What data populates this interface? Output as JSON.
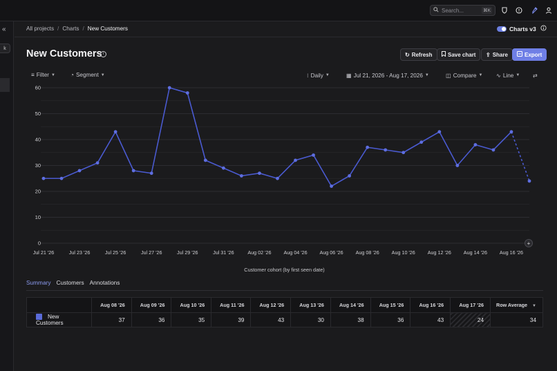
{
  "topbar": {
    "search_placeholder": "Search...",
    "search_shortcut": "⌘K",
    "icons": [
      "shield-icon",
      "help-icon",
      "rocket-icon",
      "user-icon"
    ]
  },
  "sidebar": {
    "collapse_icon": "double-chevron-left-icon",
    "pill_label": "k"
  },
  "breadcrumb": [
    "All projects",
    "Charts",
    "New Customers"
  ],
  "charts_toggle": {
    "label": "Charts v3",
    "on": true
  },
  "page": {
    "title": "New Customers"
  },
  "actions": {
    "refresh": "Refresh",
    "save": "Save chart",
    "share": "Share",
    "export": "Export"
  },
  "controls": {
    "filter": "Filter",
    "segment": "Segment",
    "interval": "Daily",
    "date_range": "Jul 21, 2026 - Aug 17, 2026",
    "compare": "Compare",
    "chart_type": "Line"
  },
  "colors": {
    "accent": "#6f7fe6",
    "series": "#4a5ad0",
    "background": "#1b1b1d"
  },
  "chart_data": {
    "type": "line",
    "x": [
      "Jul 21 '26",
      "Jul 22 '26",
      "Jul 23 '26",
      "Jul 24 '26",
      "Jul 25 '26",
      "Jul 26 '26",
      "Jul 27 '26",
      "Jul 28 '26",
      "Jul 29 '26",
      "Jul 30 '26",
      "Jul 31 '26",
      "Aug 01 '26",
      "Aug 02 '26",
      "Aug 03 '26",
      "Aug 04 '26",
      "Aug 05 '26",
      "Aug 06 '26",
      "Aug 07 '26",
      "Aug 08 '26",
      "Aug 09 '26",
      "Aug 10 '26",
      "Aug 11 '26",
      "Aug 12 '26",
      "Aug 13 '26",
      "Aug 14 '26",
      "Aug 15 '26",
      "Aug 16 '26",
      "Aug 17 '26"
    ],
    "xticks": [
      "Jul 21 '26",
      "Jul 23 '26",
      "Jul 25 '26",
      "Jul 27 '26",
      "Jul 29 '26",
      "Jul 31 '26",
      "Aug 02 '26",
      "Aug 04 '26",
      "Aug 06 '26",
      "Aug 08 '26",
      "Aug 10 '26",
      "Aug 12 '26",
      "Aug 14 '26",
      "Aug 16 '26"
    ],
    "series": [
      {
        "name": "New Customers",
        "values": [
          25,
          25,
          28,
          31,
          43,
          28,
          27,
          60,
          58,
          32,
          29,
          26,
          27,
          25,
          32,
          34,
          22,
          26,
          37,
          36,
          35,
          39,
          43,
          30,
          38,
          36,
          43,
          24
        ]
      }
    ],
    "yticks": [
      0,
      10,
      20,
      30,
      40,
      50,
      60
    ],
    "ylim": [
      0,
      60
    ],
    "xlabel": "Customer cohort (by first seen date)",
    "ylabel": "",
    "grid": true,
    "last_point_partial": true
  },
  "tabs": [
    "Summary",
    "Customers",
    "Annotations"
  ],
  "table": {
    "columns": [
      "Aug 08 '26",
      "Aug 09 '26",
      "Aug 10 '26",
      "Aug 11 '26",
      "Aug 12 '26",
      "Aug 13 '26",
      "Aug 14 '26",
      "Aug 15 '26",
      "Aug 16 '26",
      "Aug 17 '26"
    ],
    "avg_header": "Row Average",
    "rows": [
      {
        "label": "New Customers",
        "values": [
          "37",
          "36",
          "35",
          "39",
          "43",
          "30",
          "38",
          "36",
          "43",
          "24"
        ],
        "average": "34"
      }
    ]
  }
}
